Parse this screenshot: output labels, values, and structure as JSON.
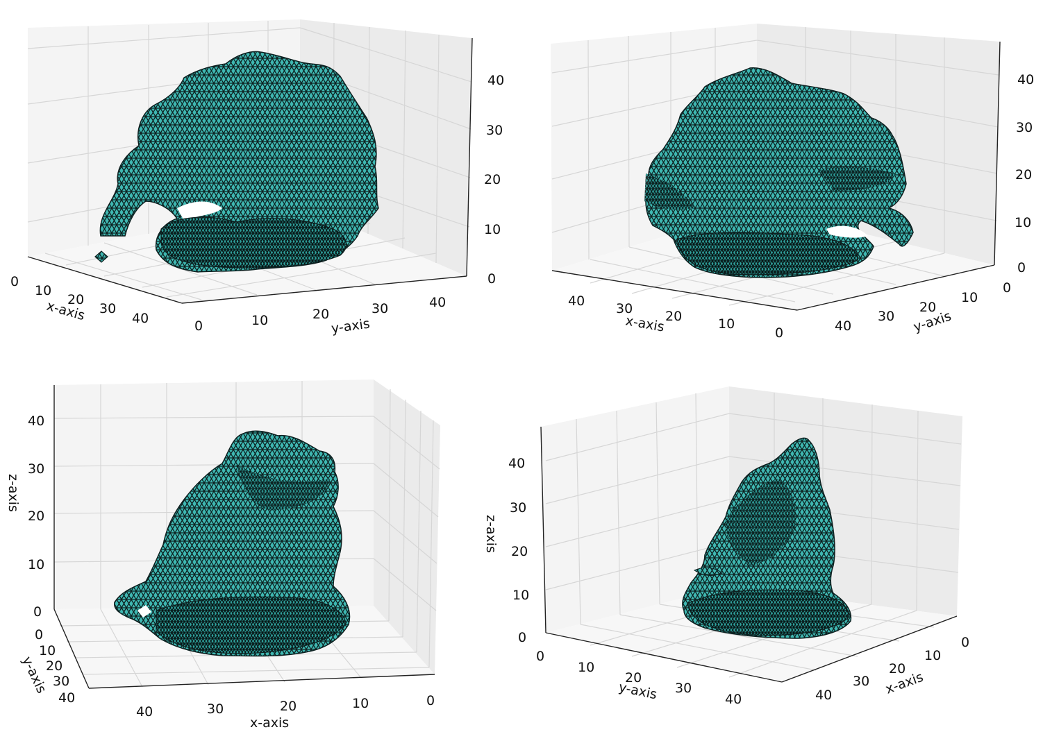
{
  "colors": {
    "pane_left": "#f4f4f4",
    "pane_right": "#ebebeb",
    "pane_floor": "#f7f7f7",
    "grid": "#d6d6d6",
    "axis": "#222222",
    "mesh_face": "#3fb8b2",
    "mesh_edge": "#0d2020"
  },
  "chart_data": [
    {
      "type": "mesh3d",
      "panel": "top-left",
      "xlabel": "x-axis",
      "ylabel": "y-axis",
      "zlabel": "",
      "xlim": [
        0,
        45
      ],
      "ylim": [
        0,
        45
      ],
      "zlim": [
        0,
        45
      ],
      "x_ticks": [
        "0",
        "10",
        "20",
        "30",
        "40"
      ],
      "y_ticks": [
        "0",
        "10",
        "20",
        "30",
        "40"
      ],
      "z_ticks": [
        "0",
        "10",
        "20",
        "30",
        "40"
      ]
    },
    {
      "type": "mesh3d",
      "panel": "top-right",
      "xlabel": "x-axis",
      "ylabel": "y-axis",
      "zlabel": "",
      "xlim": [
        0,
        45
      ],
      "ylim": [
        0,
        45
      ],
      "zlim": [
        0,
        45
      ],
      "x_ticks": [
        "40",
        "30",
        "20",
        "10",
        "0"
      ],
      "y_ticks": [
        "40",
        "30",
        "20",
        "10",
        "0"
      ],
      "z_ticks": [
        "0",
        "10",
        "20",
        "30",
        "40"
      ]
    },
    {
      "type": "mesh3d",
      "panel": "bottom-left",
      "xlabel": "x-axis",
      "ylabel": "y-axis",
      "zlabel": "z-axis",
      "xlim": [
        0,
        45
      ],
      "ylim": [
        0,
        45
      ],
      "zlim": [
        0,
        45
      ],
      "x_ticks": [
        "40",
        "30",
        "20",
        "10",
        "0"
      ],
      "y_ticks": [
        "0",
        "10",
        "20",
        "30",
        "40"
      ],
      "z_ticks": [
        "0",
        "10",
        "20",
        "30",
        "40"
      ]
    },
    {
      "type": "mesh3d",
      "panel": "bottom-right",
      "xlabel": "x-axis",
      "ylabel": "y-axis",
      "zlabel": "z-axis",
      "xlim": [
        0,
        45
      ],
      "ylim": [
        0,
        45
      ],
      "zlim": [
        0,
        45
      ],
      "x_ticks": [
        "40",
        "30",
        "20",
        "10",
        "0"
      ],
      "y_ticks": [
        "0",
        "10",
        "20",
        "30",
        "40"
      ],
      "z_ticks": [
        "0",
        "10",
        "20",
        "30",
        "40"
      ]
    }
  ]
}
